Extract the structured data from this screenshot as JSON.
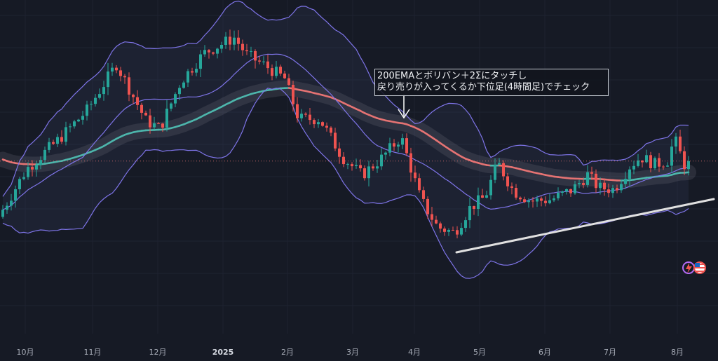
{
  "chart_data": {
    "type": "candlestick",
    "x_axis": {
      "tick_labels": [
        "10月",
        "11月",
        "12月",
        "2025",
        "2月",
        "3月",
        "4月",
        "5月",
        "6月",
        "7月",
        "8月"
      ]
    },
    "annotation": {
      "lines": [
        "200EMAとボリバン＋2Σにタッチし",
        "戻り売りが入ってくるか下位足(4時間足)でチェック"
      ]
    },
    "colors": {
      "background": "#161a25",
      "candle_up": "#26a69a",
      "candle_down": "#ef5350",
      "bollinger": "#7e74e8",
      "ema200_green": "#4db6ac",
      "ema200_red": "#e57373",
      "trendline": "#e0e0e0",
      "current_price_line": "#e57373",
      "annotation_arrow": "#ffffff"
    },
    "icons": {
      "right_edge": [
        "lightning-icon",
        "us-flag-icon"
      ]
    },
    "series": [
      {
        "name": "",
        "kind": "price",
        "points": [
          {
            "x": 2,
            "y": 38.5
          },
          {
            "x": 42,
            "y": 54.3
          },
          {
            "x": 88,
            "y": 64.1
          },
          {
            "x": 128,
            "y": 73.6
          },
          {
            "x": 170,
            "y": 88.8
          },
          {
            "x": 212,
            "y": 70.3
          },
          {
            "x": 232,
            "y": 67.6
          },
          {
            "x": 262,
            "y": 83.2
          },
          {
            "x": 295,
            "y": 92.5
          },
          {
            "x": 338,
            "y": 97.6
          },
          {
            "x": 356,
            "y": 91.9
          },
          {
            "x": 382,
            "y": 88.4
          },
          {
            "x": 410,
            "y": 84.1
          },
          {
            "x": 430,
            "y": 70.8
          },
          {
            "x": 460,
            "y": 70.8
          },
          {
            "x": 492,
            "y": 58.3
          },
          {
            "x": 520,
            "y": 52.2
          },
          {
            "x": 548,
            "y": 57.8
          },
          {
            "x": 576,
            "y": 64.9
          },
          {
            "x": 604,
            "y": 44.3
          },
          {
            "x": 628,
            "y": 35.1
          },
          {
            "x": 652,
            "y": 33.3
          },
          {
            "x": 675,
            "y": 41.7
          },
          {
            "x": 696,
            "y": 45.2
          },
          {
            "x": 714,
            "y": 56.3
          },
          {
            "x": 736,
            "y": 47.1
          },
          {
            "x": 762,
            "y": 43.7
          },
          {
            "x": 790,
            "y": 44.2
          },
          {
            "x": 820,
            "y": 47.4
          },
          {
            "x": 842,
            "y": 52.4
          },
          {
            "x": 858,
            "y": 48.1
          },
          {
            "x": 880,
            "y": 47.6
          },
          {
            "x": 902,
            "y": 55.2
          },
          {
            "x": 918,
            "y": 58.3
          },
          {
            "x": 938,
            "y": 55.8
          },
          {
            "x": 956,
            "y": 57.1
          },
          {
            "x": 966,
            "y": 64.3
          },
          {
            "x": 980,
            "y": 55.8
          }
        ]
      }
    ]
  }
}
